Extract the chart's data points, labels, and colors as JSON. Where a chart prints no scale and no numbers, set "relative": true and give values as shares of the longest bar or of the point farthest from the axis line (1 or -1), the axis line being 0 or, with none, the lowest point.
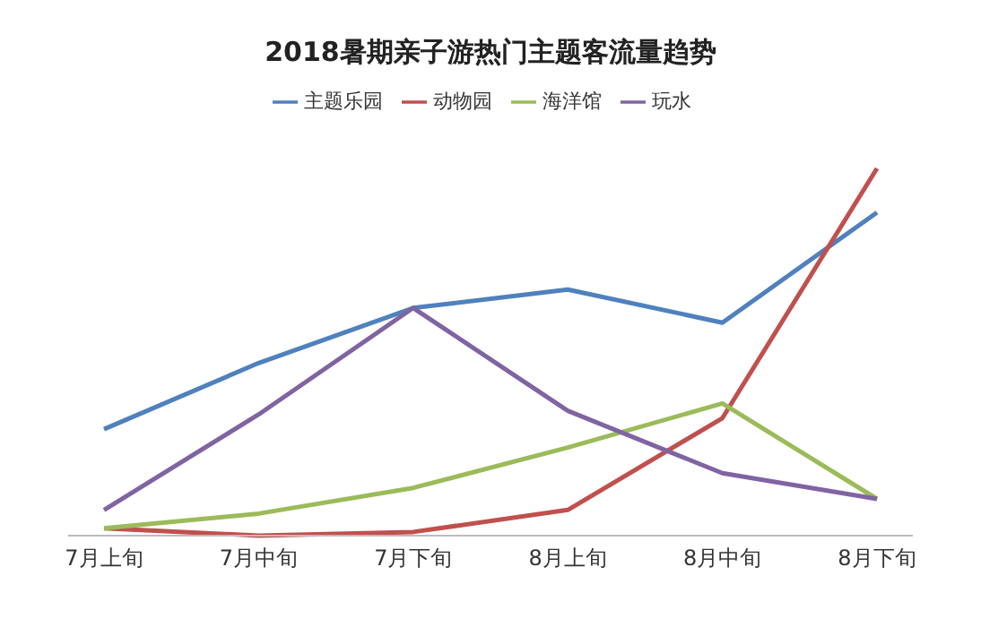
{
  "chart_data": {
    "type": "line",
    "title": "2018暑期亲子游热门主题客流量趋势",
    "categories": [
      "7月上旬",
      "7月中旬",
      "7月下旬",
      "8月上旬",
      "8月中旬",
      "8月下旬"
    ],
    "relative": true,
    "legend": "top",
    "marker": "none",
    "grid": false,
    "series": [
      {
        "name": "主题乐园",
        "color": "#4f81bd",
        "values": [
          0.29,
          0.47,
          0.62,
          0.67,
          0.58,
          0.88
        ]
      },
      {
        "name": "动物园",
        "color": "#c0504d",
        "values": [
          0.02,
          0,
          0.01,
          0.07,
          0.32,
          1
        ]
      },
      {
        "name": "海洋馆",
        "color": "#9bbb59",
        "values": [
          0.02,
          0.06,
          0.13,
          0.24,
          0.36,
          0.1
        ]
      },
      {
        "name": "玩水",
        "color": "#8064a2",
        "values": [
          0.07,
          0.33,
          0.62,
          0.34,
          0.17,
          0.1
        ]
      }
    ]
  }
}
